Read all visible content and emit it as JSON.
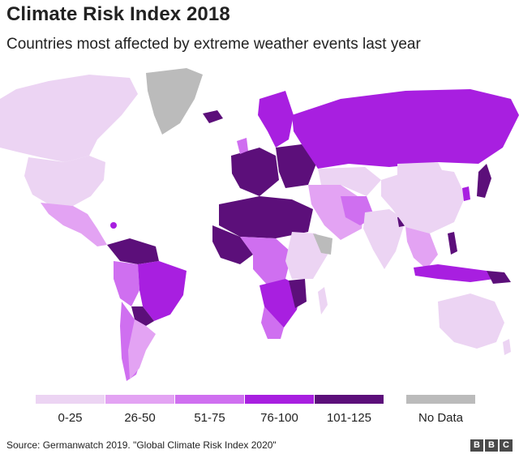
{
  "title": "Climate Risk Index 2018",
  "subtitle": "Countries most affected by extreme weather events last year",
  "legend": {
    "items": [
      {
        "label": "0-25",
        "color": "#ecd4f3"
      },
      {
        "label": "26-50",
        "color": "#e3a3f3"
      },
      {
        "label": "51-75",
        "color": "#cf6ff0"
      },
      {
        "label": "76-100",
        "color": "#a81fe0"
      },
      {
        "label": "101-125",
        "color": "#5c0f7a"
      },
      {
        "label": "No Data",
        "color": "#bbbbbb"
      }
    ]
  },
  "source": "Source: Germanwatch 2019. \"Global Climate Risk Index 2020\"",
  "logo": [
    "B",
    "B",
    "C"
  ]
}
